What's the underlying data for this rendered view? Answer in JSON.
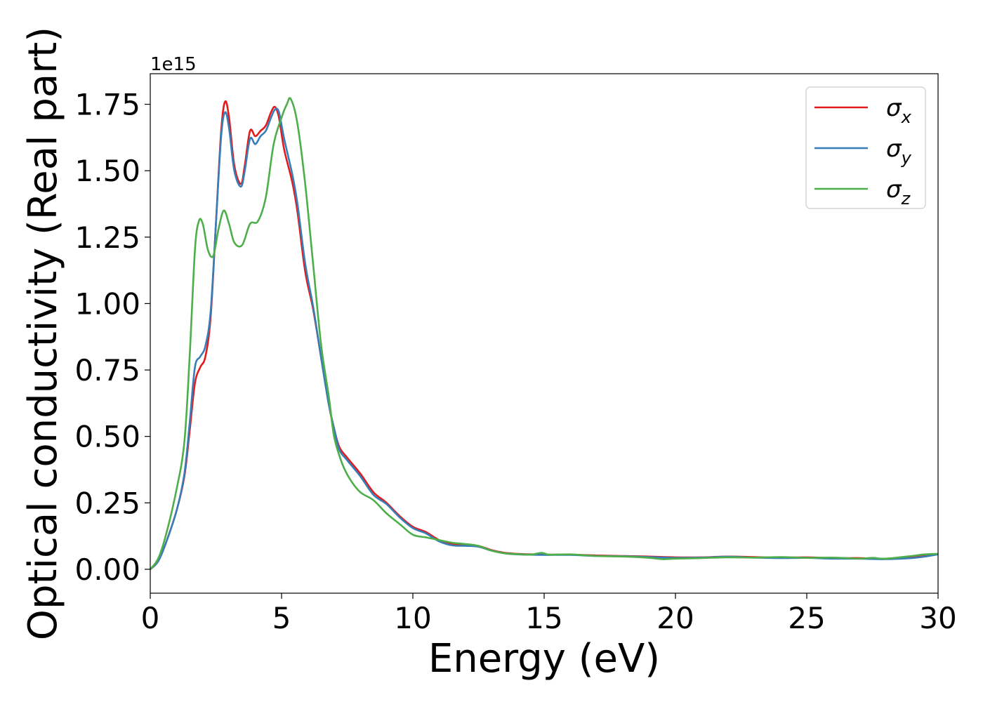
{
  "chart_data": {
    "type": "line",
    "title": "",
    "xlabel": "Energy (eV)",
    "ylabel": "Optical conductivity (Real part)",
    "y_offset_text": "1e15",
    "xlim": [
      0,
      30
    ],
    "ylim": [
      -0.09,
      1.865
    ],
    "y_scale_factor": 1000000000000000.0,
    "x_ticks": [
      0,
      5,
      10,
      15,
      20,
      25,
      30
    ],
    "x_tick_labels": [
      "0",
      "5",
      "10",
      "15",
      "20",
      "25",
      "30"
    ],
    "y_ticks": [
      0.0,
      0.25,
      0.5,
      0.75,
      1.0,
      1.25,
      1.5,
      1.75
    ],
    "y_tick_labels": [
      "0.00",
      "0.25",
      "0.50",
      "0.75",
      "1.00",
      "1.25",
      "1.50",
      "1.75"
    ],
    "grid": false,
    "legend_position": "top-right",
    "series": [
      {
        "name": "σ",
        "subscript": "x",
        "color": "#e41a1c",
        "points": [
          [
            0,
            0
          ],
          [
            0.3,
            0.03
          ],
          [
            0.6,
            0.1
          ],
          [
            1.0,
            0.22
          ],
          [
            1.3,
            0.35
          ],
          [
            1.5,
            0.52
          ],
          [
            1.7,
            0.7
          ],
          [
            1.9,
            0.76
          ],
          [
            2.1,
            0.8
          ],
          [
            2.3,
            0.95
          ],
          [
            2.5,
            1.3
          ],
          [
            2.7,
            1.65
          ],
          [
            2.85,
            1.76
          ],
          [
            3.0,
            1.7
          ],
          [
            3.2,
            1.52
          ],
          [
            3.45,
            1.45
          ],
          [
            3.6,
            1.52
          ],
          [
            3.8,
            1.65
          ],
          [
            4.0,
            1.63
          ],
          [
            4.2,
            1.65
          ],
          [
            4.4,
            1.67
          ],
          [
            4.6,
            1.72
          ],
          [
            4.75,
            1.74
          ],
          [
            4.9,
            1.7
          ],
          [
            5.1,
            1.58
          ],
          [
            5.4,
            1.46
          ],
          [
            5.6,
            1.35
          ],
          [
            5.9,
            1.12
          ],
          [
            6.2,
            0.98
          ],
          [
            6.5,
            0.8
          ],
          [
            6.8,
            0.62
          ],
          [
            7.0,
            0.53
          ],
          [
            7.2,
            0.46
          ],
          [
            7.5,
            0.42
          ],
          [
            8.0,
            0.36
          ],
          [
            8.5,
            0.29
          ],
          [
            9.0,
            0.25
          ],
          [
            9.5,
            0.2
          ],
          [
            10.0,
            0.16
          ],
          [
            10.5,
            0.14
          ],
          [
            11.0,
            0.11
          ],
          [
            11.5,
            0.095
          ],
          [
            12.0,
            0.09
          ],
          [
            12.5,
            0.088
          ],
          [
            13.0,
            0.072
          ],
          [
            13.5,
            0.062
          ],
          [
            14.0,
            0.058
          ],
          [
            15.0,
            0.055
          ],
          [
            16.0,
            0.055
          ],
          [
            17.0,
            0.052
          ],
          [
            18.0,
            0.05
          ],
          [
            19.0,
            0.048
          ],
          [
            20.0,
            0.045
          ],
          [
            21.0,
            0.045
          ],
          [
            22.0,
            0.048
          ],
          [
            23.0,
            0.046
          ],
          [
            24.0,
            0.044
          ],
          [
            25.0,
            0.045
          ],
          [
            26.0,
            0.042
          ],
          [
            27.0,
            0.042
          ],
          [
            28.0,
            0.04
          ],
          [
            29.0,
            0.045
          ],
          [
            29.5,
            0.05
          ],
          [
            30.0,
            0.058
          ]
        ]
      },
      {
        "name": "σ",
        "subscript": "y",
        "color": "#377eb8",
        "points": [
          [
            0,
            0
          ],
          [
            0.3,
            0.03
          ],
          [
            0.6,
            0.1
          ],
          [
            1.0,
            0.22
          ],
          [
            1.3,
            0.36
          ],
          [
            1.5,
            0.55
          ],
          [
            1.7,
            0.76
          ],
          [
            1.9,
            0.8
          ],
          [
            2.1,
            0.84
          ],
          [
            2.3,
            0.97
          ],
          [
            2.5,
            1.3
          ],
          [
            2.7,
            1.63
          ],
          [
            2.85,
            1.72
          ],
          [
            3.0,
            1.66
          ],
          [
            3.2,
            1.5
          ],
          [
            3.45,
            1.44
          ],
          [
            3.6,
            1.5
          ],
          [
            3.8,
            1.62
          ],
          [
            4.0,
            1.6
          ],
          [
            4.2,
            1.63
          ],
          [
            4.4,
            1.65
          ],
          [
            4.6,
            1.7
          ],
          [
            4.75,
            1.73
          ],
          [
            4.9,
            1.72
          ],
          [
            5.1,
            1.62
          ],
          [
            5.4,
            1.49
          ],
          [
            5.6,
            1.38
          ],
          [
            5.9,
            1.15
          ],
          [
            6.2,
            0.99
          ],
          [
            6.5,
            0.8
          ],
          [
            6.8,
            0.62
          ],
          [
            7.0,
            0.53
          ],
          [
            7.2,
            0.45
          ],
          [
            7.5,
            0.41
          ],
          [
            8.0,
            0.35
          ],
          [
            8.5,
            0.28
          ],
          [
            9.0,
            0.245
          ],
          [
            9.5,
            0.195
          ],
          [
            10.0,
            0.155
          ],
          [
            10.5,
            0.135
          ],
          [
            11.0,
            0.105
          ],
          [
            11.5,
            0.09
          ],
          [
            12.0,
            0.088
          ],
          [
            12.5,
            0.085
          ],
          [
            13.0,
            0.07
          ],
          [
            13.5,
            0.06
          ],
          [
            14.0,
            0.056
          ],
          [
            15.0,
            0.054
          ],
          [
            16.0,
            0.054
          ],
          [
            17.0,
            0.05
          ],
          [
            18.0,
            0.049
          ],
          [
            19.0,
            0.046
          ],
          [
            20.0,
            0.043
          ],
          [
            21.0,
            0.044
          ],
          [
            22.0,
            0.047
          ],
          [
            23.0,
            0.044
          ],
          [
            24.0,
            0.042
          ],
          [
            25.0,
            0.043
          ],
          [
            26.0,
            0.04
          ],
          [
            27.0,
            0.04
          ],
          [
            28.0,
            0.038
          ],
          [
            29.0,
            0.042
          ],
          [
            29.5,
            0.048
          ],
          [
            30.0,
            0.056
          ]
        ]
      },
      {
        "name": "σ",
        "subscript": "z",
        "color": "#4daf4a",
        "points": [
          [
            0,
            0
          ],
          [
            0.3,
            0.04
          ],
          [
            0.6,
            0.13
          ],
          [
            1.0,
            0.3
          ],
          [
            1.3,
            0.48
          ],
          [
            1.5,
            0.8
          ],
          [
            1.7,
            1.2
          ],
          [
            1.85,
            1.31
          ],
          [
            2.0,
            1.3
          ],
          [
            2.2,
            1.2
          ],
          [
            2.4,
            1.18
          ],
          [
            2.6,
            1.28
          ],
          [
            2.8,
            1.35
          ],
          [
            3.0,
            1.3
          ],
          [
            3.2,
            1.23
          ],
          [
            3.5,
            1.22
          ],
          [
            3.8,
            1.3
          ],
          [
            4.1,
            1.31
          ],
          [
            4.4,
            1.4
          ],
          [
            4.7,
            1.6
          ],
          [
            5.0,
            1.7
          ],
          [
            5.2,
            1.75
          ],
          [
            5.35,
            1.77
          ],
          [
            5.6,
            1.68
          ],
          [
            5.9,
            1.45
          ],
          [
            6.2,
            1.15
          ],
          [
            6.5,
            0.85
          ],
          [
            6.8,
            0.65
          ],
          [
            7.0,
            0.5
          ],
          [
            7.3,
            0.4
          ],
          [
            7.6,
            0.34
          ],
          [
            8.0,
            0.29
          ],
          [
            8.5,
            0.26
          ],
          [
            9.0,
            0.21
          ],
          [
            9.5,
            0.17
          ],
          [
            10.0,
            0.13
          ],
          [
            10.5,
            0.12
          ],
          [
            11.0,
            0.11
          ],
          [
            11.5,
            0.1
          ],
          [
            12.0,
            0.095
          ],
          [
            12.5,
            0.088
          ],
          [
            13.0,
            0.07
          ],
          [
            13.5,
            0.06
          ],
          [
            14.0,
            0.057
          ],
          [
            14.5,
            0.055
          ],
          [
            14.9,
            0.062
          ],
          [
            15.2,
            0.055
          ],
          [
            16.0,
            0.056
          ],
          [
            17.0,
            0.05
          ],
          [
            18.0,
            0.048
          ],
          [
            19.0,
            0.043
          ],
          [
            19.5,
            0.038
          ],
          [
            20.0,
            0.04
          ],
          [
            21.0,
            0.042
          ],
          [
            22.0,
            0.045
          ],
          [
            23.0,
            0.044
          ],
          [
            24.0,
            0.046
          ],
          [
            25.0,
            0.043
          ],
          [
            26.0,
            0.044
          ],
          [
            27.0,
            0.04
          ],
          [
            27.5,
            0.043
          ],
          [
            28.0,
            0.04
          ],
          [
            29.0,
            0.05
          ],
          [
            29.5,
            0.056
          ],
          [
            30.0,
            0.058
          ]
        ]
      }
    ]
  }
}
